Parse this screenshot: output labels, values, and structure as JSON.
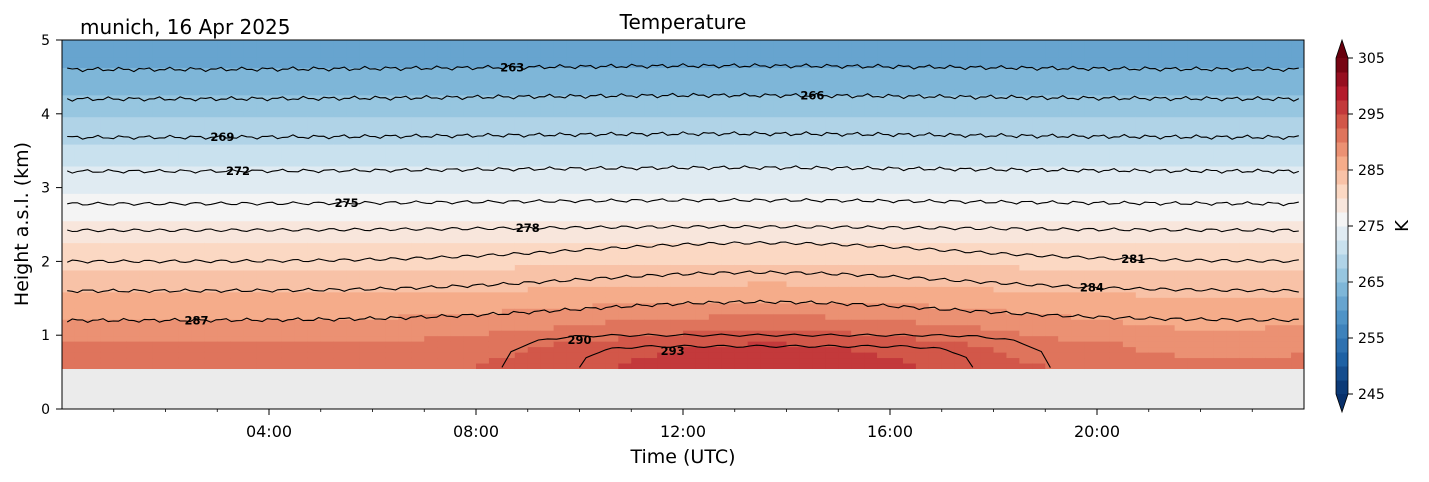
{
  "chart_data": {
    "type": "heatmap",
    "title": "Temperature",
    "location_date": "munich, 16 Apr 2025",
    "xlabel": "Time (UTC)",
    "ylabel": "Height a.s.l. (km)",
    "x_unit": "hours",
    "xlim": [
      0,
      24
    ],
    "ylim": [
      0,
      5
    ],
    "x_ticks": [
      {
        "value": 4,
        "label": "04:00"
      },
      {
        "value": 8,
        "label": "08:00"
      },
      {
        "value": 12,
        "label": "12:00"
      },
      {
        "value": 16,
        "label": "16:00"
      },
      {
        "value": 20,
        "label": "20:00"
      }
    ],
    "y_ticks": [
      {
        "value": 0,
        "label": "0"
      },
      {
        "value": 1,
        "label": "1"
      },
      {
        "value": 2,
        "label": "2"
      },
      {
        "value": 3,
        "label": "3"
      },
      {
        "value": 4,
        "label": "4"
      },
      {
        "value": 5,
        "label": "5"
      }
    ],
    "data_bottom_km": 0.55,
    "colorbar": {
      "label": "K",
      "min": 245,
      "max": 305,
      "step": 2.5,
      "ticks": [
        "245",
        "255",
        "265",
        "275",
        "285",
        "295",
        "305"
      ]
    },
    "contours": [
      {
        "level": 263,
        "label": "263",
        "height_km": 4.6,
        "label_x": 8.7
      },
      {
        "level": 266,
        "label": "266",
        "height_km": 4.2,
        "label_x": 14.5
      },
      {
        "level": 269,
        "label": "269",
        "height_km": 3.68,
        "label_x": 3.1
      },
      {
        "level": 272,
        "label": "272",
        "height_km": 3.22,
        "label_x": 3.4
      },
      {
        "level": 275,
        "label": "275",
        "height_km": 2.78,
        "label_x": 5.5
      },
      {
        "level": 278,
        "label": "278",
        "height_km": 2.42,
        "label_x": 9.0
      },
      {
        "level": 281,
        "label": "281",
        "height_km": 2.0,
        "label_x": 20.7
      },
      {
        "level": 284,
        "label": "284",
        "height_km": 1.6,
        "label_x": 19.9
      },
      {
        "level": 287,
        "label": "287",
        "height_km": 1.2,
        "label_x": 2.6
      },
      {
        "level": 290,
        "label": "290",
        "height_km": 0.95,
        "label_x": 10.0
      },
      {
        "level": 293,
        "label": "293",
        "height_km": 0.8,
        "label_x": 11.8
      }
    ],
    "colors": {
      "cold": "#08306b",
      "neutral": "#f5f5f5",
      "warm": "#67000d",
      "no_data": "#ebebeb"
    }
  }
}
